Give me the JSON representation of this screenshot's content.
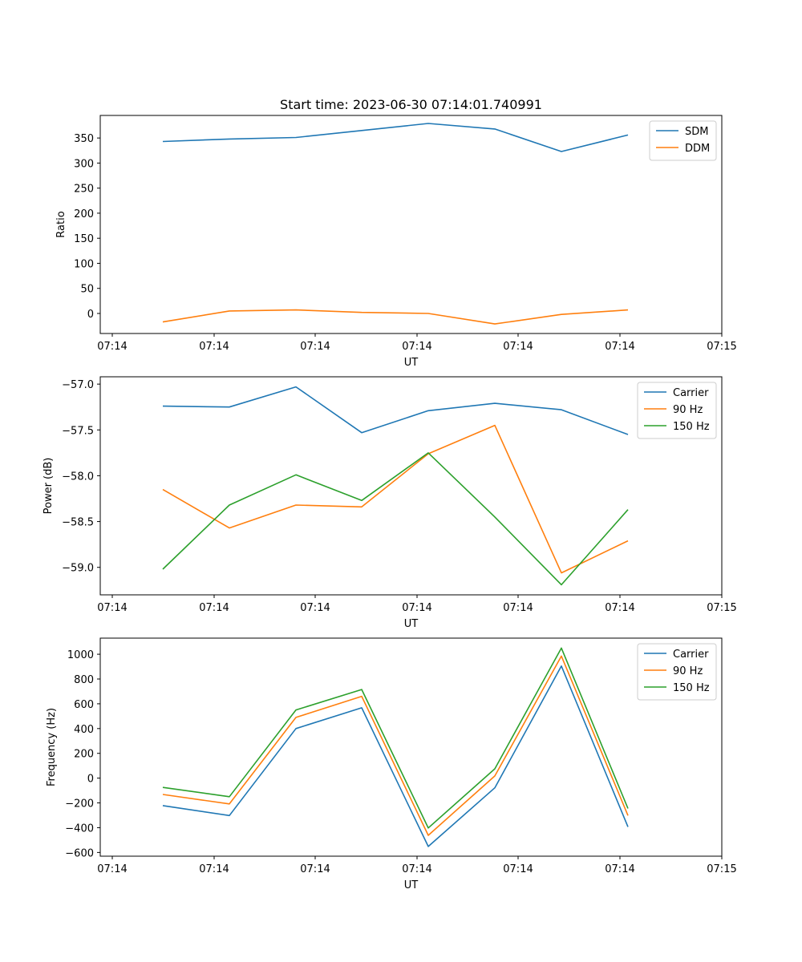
{
  "chart_data": [
    {
      "type": "line",
      "title": "Start time: 2023-06-30 07:14:01.740991",
      "xlabel": "UT",
      "ylabel": "Ratio",
      "x_tick_labels": [
        "07:14",
        "07:14",
        "07:14",
        "07:14",
        "07:14",
        "07:14",
        "07:14"
      ],
      "end_tick_labels": [
        "07:14",
        "07:15"
      ],
      "y_ticks": [
        0,
        50,
        100,
        150,
        200,
        250,
        300,
        350
      ],
      "ylim": [
        -40,
        395
      ],
      "grid": false,
      "legend": "top-right",
      "series": [
        {
          "name": "SDM",
          "color": "#1f77b4",
          "values": [
            343,
            348,
            351,
            365,
            379,
            368,
            323,
            356
          ]
        },
        {
          "name": "DDM",
          "color": "#ff7f0e",
          "values": [
            -17,
            5,
            7,
            2,
            0,
            -21,
            -2,
            7
          ]
        }
      ]
    },
    {
      "type": "line",
      "title": "",
      "xlabel": "UT",
      "ylabel": "Power (dB)",
      "x_tick_labels": [
        "07:14",
        "07:14",
        "07:14",
        "07:14",
        "07:14",
        "07:14",
        "07:14"
      ],
      "end_tick_labels": [
        "07:14",
        "07:15"
      ],
      "y_ticks": [
        -59.0,
        -58.5,
        -58.0,
        -57.5,
        -57.0
      ],
      "y_tick_labels": [
        "−59.0",
        "−58.5",
        "−58.0",
        "−57.5",
        "−57.0"
      ],
      "ylim": [
        -59.3,
        -56.92
      ],
      "grid": false,
      "legend": "top-right",
      "series": [
        {
          "name": "Carrier",
          "color": "#1f77b4",
          "values": [
            -57.24,
            -57.25,
            -57.03,
            -57.53,
            -57.29,
            -57.21,
            -57.28,
            -57.55
          ]
        },
        {
          "name": "90 Hz",
          "color": "#ff7f0e",
          "values": [
            -58.15,
            -58.57,
            -58.32,
            -58.34,
            -57.76,
            -57.45,
            -59.06,
            -58.71
          ]
        },
        {
          "name": "150 Hz",
          "color": "#2ca02c",
          "values": [
            -59.02,
            -58.32,
            -57.99,
            -58.27,
            -57.75,
            -58.45,
            -59.19,
            -58.37
          ]
        }
      ]
    },
    {
      "type": "line",
      "title": "",
      "xlabel": "UT",
      "ylabel": "Frequency (Hz)",
      "x_tick_labels": [
        "07:14",
        "07:14",
        "07:14",
        "07:14",
        "07:14",
        "07:14",
        "07:14"
      ],
      "end_tick_labels": [
        "07:14",
        "07:15"
      ],
      "y_ticks": [
        -600,
        -400,
        -200,
        0,
        200,
        400,
        600,
        800,
        1000
      ],
      "y_tick_labels": [
        "−600",
        "−400",
        "−200",
        "0",
        "200",
        "400",
        "600",
        "800",
        "1000"
      ],
      "ylim": [
        -630,
        1130
      ],
      "grid": false,
      "legend": "top-right",
      "series": [
        {
          "name": "Carrier",
          "color": "#1f77b4",
          "values": [
            -222,
            -302,
            400,
            568,
            -552,
            -78,
            905,
            -393
          ]
        },
        {
          "name": "90 Hz",
          "color": "#ff7f0e",
          "values": [
            -132,
            -208,
            490,
            660,
            -462,
            18,
            985,
            -302
          ]
        },
        {
          "name": "150 Hz",
          "color": "#2ca02c",
          "values": [
            -75,
            -150,
            550,
            715,
            -402,
            75,
            1050,
            -245
          ]
        }
      ]
    }
  ]
}
